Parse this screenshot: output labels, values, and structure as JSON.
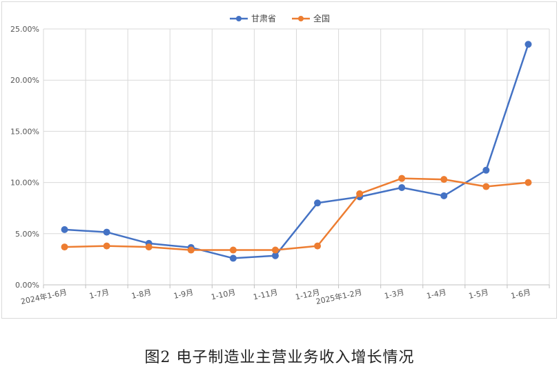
{
  "caption": "图2 电子制造业主营业务收入增长情况",
  "chart_data": {
    "type": "line",
    "title": "",
    "xlabel": "",
    "ylabel": "",
    "categories": [
      "2024年1-6月",
      "1-7月",
      "1-8月",
      "1-9月",
      "1-10月",
      "1-11月",
      "1-12月",
      "2025年1-2月",
      "1-3月",
      "1-4月",
      "1-5月",
      "1-6月"
    ],
    "ylim": [
      0,
      25
    ],
    "yticks": [
      "0.00%",
      "5.00%",
      "10.00%",
      "15.00%",
      "20.00%",
      "25.00%"
    ],
    "grid": true,
    "legend_position": "top-center",
    "series": [
      {
        "name": "甘肃省",
        "color": "#4472c4",
        "values": [
          5.4,
          5.15,
          4.05,
          3.65,
          2.6,
          2.85,
          8.0,
          8.6,
          9.5,
          8.7,
          11.2,
          23.5
        ]
      },
      {
        "name": "全国",
        "color": "#ed7d31",
        "values": [
          3.7,
          3.8,
          3.7,
          3.4,
          3.4,
          3.4,
          3.8,
          8.9,
          10.4,
          10.3,
          9.6,
          10.0
        ]
      }
    ]
  }
}
